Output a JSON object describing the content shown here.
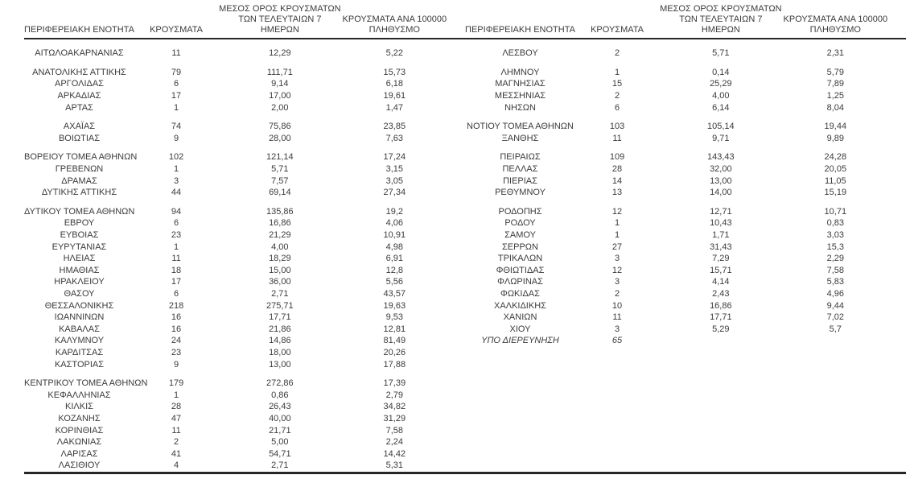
{
  "page": {
    "background_color": "#ffffff",
    "text_color": "#3b3b3b",
    "rule_color": "#262626"
  },
  "table": {
    "headers": {
      "region": "ΠΕΡΙΦΕΡΕΙΑΚΗ ΕΝΟΤΗΤΑ",
      "cases": "ΚΡΟΥΣΜΑΤΑ",
      "avg7_lines": [
        "ΜΕΣΟΣ ΟΡΟΣ ΚΡΟΥΣΜΑΤΩΝ",
        "ΤΩΝ ΤΕΛΕΥΤΑΙΩΝ 7",
        "ΗΜΕΡΩΝ"
      ],
      "per100k_lines": [
        "ΚΡΟΥΣΜΑΤΑ ΑΝΑ 100000",
        "ΠΛΗΘΥΣΜΟ"
      ]
    },
    "left_rows": [
      {
        "region": "ΑΙΤΩΛΟΑΚΑΡΝΑΝΙΑΣ",
        "cases": "11",
        "avg7": "12,29",
        "per100k": "5,22"
      },
      {
        "spacer": true
      },
      {
        "region": "ΑΝΑΤΟΛΙΚΗΣ ΑΤΤΙΚΗΣ",
        "cases": "79",
        "avg7": "111,71",
        "per100k": "15,73"
      },
      {
        "region": "ΑΡΓΟΛΙΔΑΣ",
        "cases": "6",
        "avg7": "9,14",
        "per100k": "6,18"
      },
      {
        "region": "ΑΡΚΑΔΙΑΣ",
        "cases": "17",
        "avg7": "17,00",
        "per100k": "19,61"
      },
      {
        "region": "ΑΡΤΑΣ",
        "cases": "1",
        "avg7": "2,00",
        "per100k": "1,47"
      },
      {
        "spacer": true
      },
      {
        "region": "ΑΧΑΪΑΣ",
        "cases": "74",
        "avg7": "75,86",
        "per100k": "23,85"
      },
      {
        "region": "ΒΟΙΩΤΙΑΣ",
        "cases": "9",
        "avg7": "28,00",
        "per100k": "7,63"
      },
      {
        "spacer": true
      },
      {
        "region": "ΒΟΡΕΙΟΥ ΤΟΜΕΑ ΑΘΗΝΩΝ",
        "cases": "102",
        "avg7": "121,14",
        "per100k": "17,24"
      },
      {
        "region": "ΓΡΕΒΕΝΩΝ",
        "cases": "1",
        "avg7": "5,71",
        "per100k": "3,15"
      },
      {
        "region": "ΔΡΑΜΑΣ",
        "cases": "3",
        "avg7": "7,57",
        "per100k": "3,05"
      },
      {
        "region": "ΔΥΤΙΚΗΣ ΑΤΤΙΚΗΣ",
        "cases": "44",
        "avg7": "69,14",
        "per100k": "27,34"
      },
      {
        "spacer": true
      },
      {
        "region": "ΔΥΤΙΚΟΥ ΤΟΜΕΑ ΑΘΗΝΩΝ",
        "cases": "94",
        "avg7": "135,86",
        "per100k": "19,2"
      },
      {
        "region": "ΕΒΡΟΥ",
        "cases": "6",
        "avg7": "16,86",
        "per100k": "4,06"
      },
      {
        "region": "ΕΥΒΟΙΑΣ",
        "cases": "23",
        "avg7": "21,29",
        "per100k": "10,91"
      },
      {
        "region": "ΕΥΡΥΤΑΝΙΑΣ",
        "cases": "1",
        "avg7": "4,00",
        "per100k": "4,98"
      },
      {
        "region": "ΗΛΕΙΑΣ",
        "cases": "11",
        "avg7": "18,29",
        "per100k": "6,91"
      },
      {
        "region": "ΗΜΑΘΙΑΣ",
        "cases": "18",
        "avg7": "15,00",
        "per100k": "12,8"
      },
      {
        "region": "ΗΡΑΚΛΕΙΟΥ",
        "cases": "17",
        "avg7": "36,00",
        "per100k": "5,56"
      },
      {
        "region": "ΘΑΣΟΥ",
        "cases": "6",
        "avg7": "2,71",
        "per100k": "43,57"
      },
      {
        "region": "ΘΕΣΣΑΛΟΝΙΚΗΣ",
        "cases": "218",
        "avg7": "275,71",
        "per100k": "19,63"
      },
      {
        "region": "ΙΩΑΝΝΙΝΩΝ",
        "cases": "16",
        "avg7": "17,71",
        "per100k": "9,53"
      },
      {
        "region": "ΚΑΒΑΛΑΣ",
        "cases": "16",
        "avg7": "21,86",
        "per100k": "12,81"
      },
      {
        "region": "ΚΑΛΥΜΝΟΥ",
        "cases": "24",
        "avg7": "14,86",
        "per100k": "81,49"
      },
      {
        "region": "ΚΑΡΔΙΤΣΑΣ",
        "cases": "23",
        "avg7": "18,00",
        "per100k": "20,26"
      },
      {
        "region": "ΚΑΣΤΟΡΙΑΣ",
        "cases": "9",
        "avg7": "13,00",
        "per100k": "17,88"
      },
      {
        "spacer": true
      },
      {
        "region": "ΚΕΝΤΡΙΚΟΥ ΤΟΜΕΑ ΑΘΗΝΩΝ",
        "cases": "179",
        "avg7": "272,86",
        "per100k": "17,39"
      },
      {
        "region": "ΚΕΦΑΛΛΗΝΙΑΣ",
        "cases": "1",
        "avg7": "0,86",
        "per100k": "2,79"
      },
      {
        "region": "ΚΙΛΚΙΣ",
        "cases": "28",
        "avg7": "26,43",
        "per100k": "34,82"
      },
      {
        "region": "ΚΟΖΑΝΗΣ",
        "cases": "47",
        "avg7": "40,00",
        "per100k": "31,29"
      },
      {
        "region": "ΚΟΡΙΝΘΙΑΣ",
        "cases": "11",
        "avg7": "21,71",
        "per100k": "7,58"
      },
      {
        "region": "ΛΑΚΩΝΙΑΣ",
        "cases": "2",
        "avg7": "5,00",
        "per100k": "2,24"
      },
      {
        "region": "ΛΑΡΙΣΑΣ",
        "cases": "41",
        "avg7": "54,71",
        "per100k": "14,42"
      },
      {
        "region": "ΛΑΣΙΘΙΟΥ",
        "cases": "4",
        "avg7": "2,71",
        "per100k": "5,31"
      }
    ],
    "right_rows": [
      {
        "region": "ΛΕΣΒΟΥ",
        "cases": "2",
        "avg7": "5,71",
        "per100k": "2,31"
      },
      {
        "spacer": true
      },
      {
        "region": "ΛΗΜΝΟΥ",
        "cases": "1",
        "avg7": "0,14",
        "per100k": "5,79"
      },
      {
        "region": "ΜΑΓΝΗΣΙΑΣ",
        "cases": "15",
        "avg7": "25,29",
        "per100k": "7,89"
      },
      {
        "region": "ΜΕΣΣΗΝΙΑΣ",
        "cases": "2",
        "avg7": "4,00",
        "per100k": "1,25"
      },
      {
        "region": "ΝΗΣΩΝ",
        "cases": "6",
        "avg7": "6,14",
        "per100k": "8,04"
      },
      {
        "spacer": true
      },
      {
        "region": "ΝΟΤΙΟΥ ΤΟΜΕΑ ΑΘΗΝΩΝ",
        "cases": "103",
        "avg7": "105,14",
        "per100k": "19,44"
      },
      {
        "region": "ΞΑΝΘΗΣ",
        "cases": "11",
        "avg7": "9,71",
        "per100k": "9,89"
      },
      {
        "spacer": true
      },
      {
        "region": "ΠΕΙΡΑΙΩΣ",
        "cases": "109",
        "avg7": "143,43",
        "per100k": "24,28"
      },
      {
        "region": "ΠΕΛΛΑΣ",
        "cases": "28",
        "avg7": "32,00",
        "per100k": "20,05"
      },
      {
        "region": "ΠΙΕΡΙΑΣ",
        "cases": "14",
        "avg7": "13,00",
        "per100k": "11,05"
      },
      {
        "region": "ΡΕΘΥΜΝΟΥ",
        "cases": "13",
        "avg7": "14,00",
        "per100k": "15,19"
      },
      {
        "spacer": true
      },
      {
        "region": "ΡΟΔΟΠΗΣ",
        "cases": "12",
        "avg7": "12,71",
        "per100k": "10,71"
      },
      {
        "region": "ΡΟΔΟΥ",
        "cases": "1",
        "avg7": "10,43",
        "per100k": "0,83"
      },
      {
        "region": "ΣΑΜΟΥ",
        "cases": "1",
        "avg7": "1,71",
        "per100k": "3,03"
      },
      {
        "region": "ΣΕΡΡΩΝ",
        "cases": "27",
        "avg7": "31,43",
        "per100k": "15,3"
      },
      {
        "region": "ΤΡΙΚΑΛΩΝ",
        "cases": "3",
        "avg7": "7,29",
        "per100k": "2,29"
      },
      {
        "region": "ΦΘΙΩΤΙΔΑΣ",
        "cases": "12",
        "avg7": "15,71",
        "per100k": "7,58"
      },
      {
        "region": "ΦΛΩΡΙΝΑΣ",
        "cases": "3",
        "avg7": "4,14",
        "per100k": "5,83"
      },
      {
        "region": "ΦΩΚΙΔΑΣ",
        "cases": "2",
        "avg7": "2,43",
        "per100k": "4,96"
      },
      {
        "region": "ΧΑΛΚΙΔΙΚΗΣ",
        "cases": "10",
        "avg7": "16,86",
        "per100k": "9,44"
      },
      {
        "region": "ΧΑΝΙΩΝ",
        "cases": "11",
        "avg7": "17,71",
        "per100k": "7,02"
      },
      {
        "region": "ΧΙΟΥ",
        "cases": "3",
        "avg7": "5,29",
        "per100k": "5,7"
      },
      {
        "region": "ΥΠΟ ΔΙΕΡΕΥΝΗΣΗ",
        "cases": "65",
        "avg7": "",
        "per100k": "",
        "italic": true
      }
    ]
  }
}
